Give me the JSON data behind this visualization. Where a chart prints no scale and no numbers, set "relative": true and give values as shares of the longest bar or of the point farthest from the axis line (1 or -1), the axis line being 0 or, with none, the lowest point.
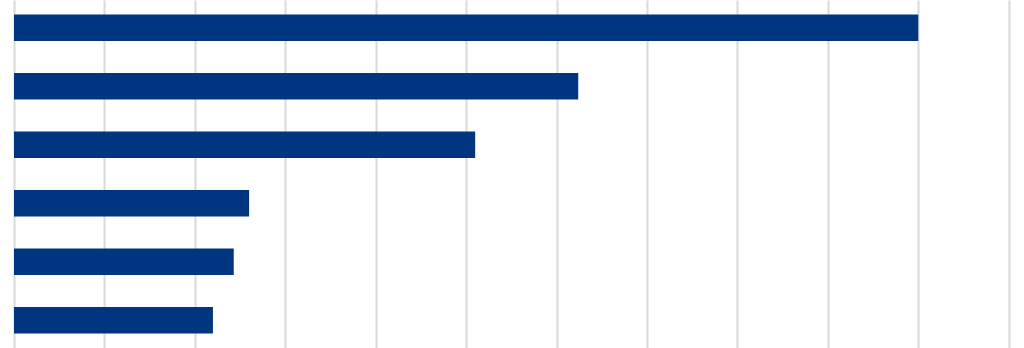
{
  "chart_data": {
    "type": "bar",
    "orientation": "horizontal",
    "relative": true,
    "grid": "x",
    "categories": [
      null,
      null,
      null,
      null,
      null,
      null
    ],
    "values": [
      1,
      0.624,
      0.51,
      0.26,
      0.243,
      0.22
    ],
    "color": "#003580"
  }
}
